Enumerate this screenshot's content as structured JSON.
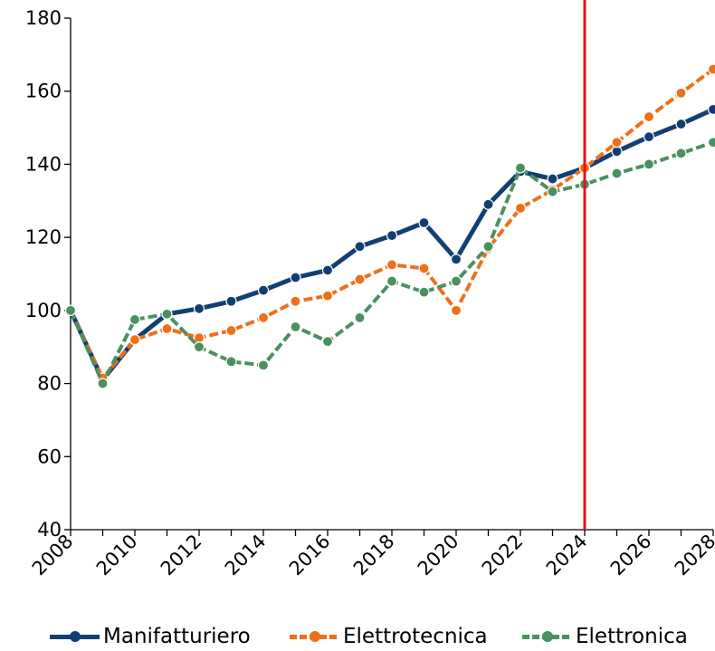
{
  "chart_data": {
    "type": "line",
    "x": [
      2008,
      2009,
      2010,
      2011,
      2012,
      2013,
      2014,
      2015,
      2016,
      2017,
      2018,
      2019,
      2020,
      2021,
      2022,
      2023,
      2024,
      2025,
      2026,
      2027,
      2028
    ],
    "xticks": [
      "2008",
      "2010",
      "2012",
      "2014",
      "2016",
      "2018",
      "2020",
      "2022",
      "2024",
      "2026",
      "2028"
    ],
    "yticks": [
      "40",
      "60",
      "80",
      "100",
      "120",
      "140",
      "160",
      "180"
    ],
    "ylim": [
      40,
      180
    ],
    "xlim": [
      2008,
      2028
    ],
    "vertical_line_x": 2024,
    "vertical_line_color": "#e8101a",
    "legend_position": "bottom",
    "series": [
      {
        "name": "Manifatturiero",
        "color": "#123f73",
        "style": "solid",
        "values": [
          100,
          81,
          92,
          99,
          100.5,
          102.5,
          105.5,
          109,
          111,
          117.5,
          120.5,
          124,
          114,
          129,
          138,
          136,
          139,
          143.5,
          147.5,
          151,
          155
        ]
      },
      {
        "name": "Elettrotecnica",
        "color": "#ee6f1a",
        "style": "dashed",
        "values": [
          100,
          81.5,
          92,
          95,
          92.5,
          94.5,
          98,
          102.5,
          104,
          108.5,
          112.5,
          111.5,
          100,
          117,
          128,
          133,
          139,
          146,
          153,
          159.5,
          166
        ]
      },
      {
        "name": "Elettronica",
        "color": "#4a9060",
        "style": "dashed",
        "values": [
          100,
          80,
          97.5,
          99,
          90,
          86,
          85,
          95.5,
          91.5,
          98,
          108,
          105,
          108,
          117.5,
          139,
          132.5,
          134.5,
          137.5,
          140,
          143,
          146
        ]
      }
    ]
  }
}
